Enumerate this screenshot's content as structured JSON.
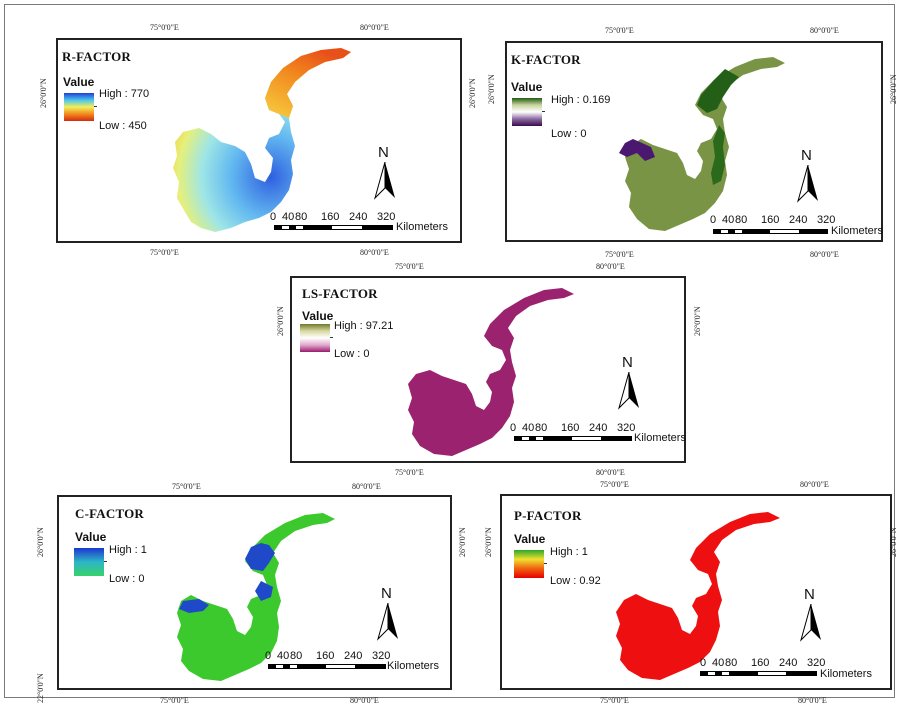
{
  "coords": {
    "lon75": "75°0'0\"E",
    "lon80": "80°0'0\"E",
    "lat26": "26°0'0\"N",
    "lat22": "22°0'0\"N"
  },
  "legend_title": "Value",
  "scale": {
    "ticks": [
      "0",
      "40",
      "80",
      "160",
      "240",
      "320"
    ],
    "unit": "Kilometers"
  },
  "north_label": "N",
  "maps": [
    {
      "title": "R-FACTOR",
      "high": "High : 770",
      "low": "Low : 450",
      "ramp": [
        "#1f3fd8",
        "#49c4f0",
        "#f3f05a",
        "#f28a1e",
        "#d42a10"
      ],
      "fill_colors": [
        "#2f5fe0",
        "#63b9f0",
        "#9fe6e6",
        "#e6f07a",
        "#f7b028",
        "#e8501a"
      ]
    },
    {
      "title": "K-FACTOR",
      "high": "High : 0.169",
      "low": "Low : 0",
      "ramp": [
        "#1f5a10",
        "#c9d3a0",
        "#ffffff",
        "#8a6aa0",
        "#3b0a4f"
      ],
      "fill_colors": [
        "#7a9445",
        "#245f17",
        "#4a1870"
      ]
    },
    {
      "title": "LS-FACTOR",
      "high": "High : 97.21",
      "low": "Low : 0",
      "ramp": [
        "#70792a",
        "#d8d8a0",
        "#ffffff",
        "#e0a9cc",
        "#9b1a6f"
      ],
      "fill_colors": [
        "#9b226f"
      ]
    },
    {
      "title": "C-FACTOR",
      "high": "High : 1",
      "low": "Low : 0",
      "ramp": [
        "#1c36cf",
        "#2db6c6",
        "#37d26a"
      ],
      "fill_colors": [
        "#3cc92e",
        "#1f49c9"
      ]
    },
    {
      "title": "P-FACTOR",
      "high": "High : 1",
      "low": "Low : 0.92",
      "ramp": [
        "#2ea82a",
        "#f0e030",
        "#f06010",
        "#e60000"
      ],
      "fill_colors": [
        "#ee1010"
      ]
    }
  ]
}
